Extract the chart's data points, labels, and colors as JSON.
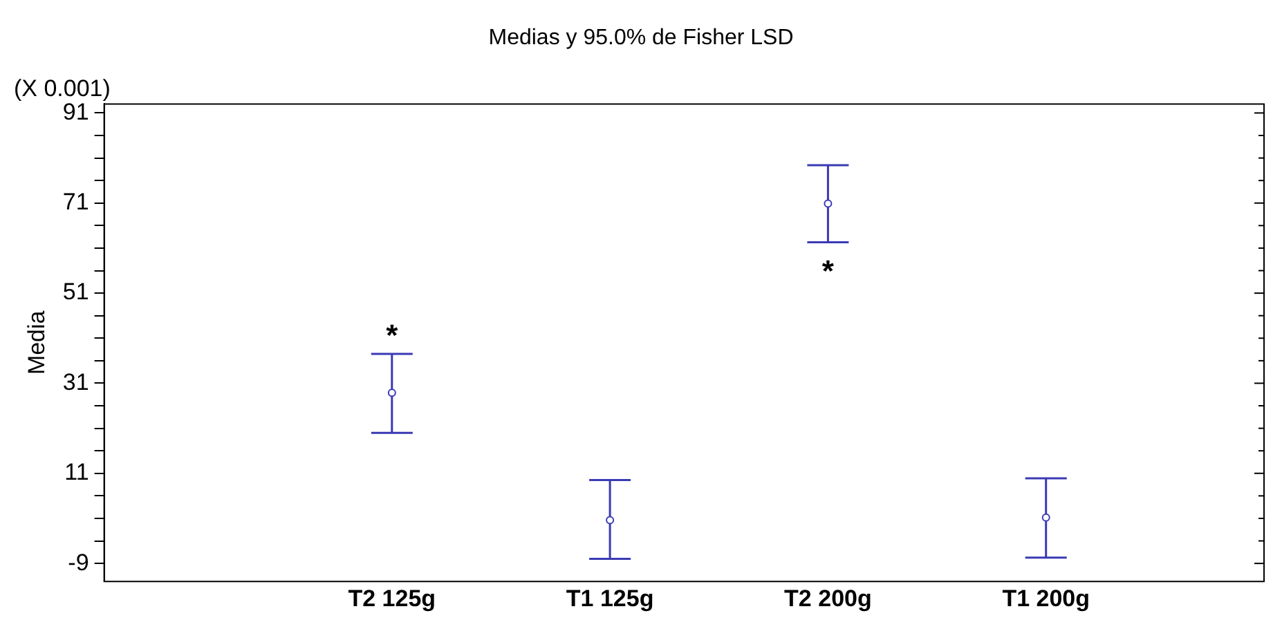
{
  "chart_data": {
    "type": "scatter",
    "title": "Medias y 95.0% de Fisher LSD",
    "ylabel": "Media",
    "categories": [
      "T2 125g",
      "T1 125g",
      "T2 200g",
      "T1 200g"
    ],
    "series": [
      {
        "color": "#3a3ab4",
        "values": [
          28.9,
          0.6,
          70.9,
          1.2
        ],
        "errors": [
          [
            20.0,
            37.5
          ],
          [
            -8.0,
            9.5
          ],
          [
            62.3,
            79.4
          ],
          [
            -7.7,
            9.9
          ]
        ]
      }
    ],
    "ylim": [
      -13,
      93
    ],
    "yticks": [
      {
        "value": -9,
        "label": "-9"
      },
      {
        "value": -4,
        "label": null
      },
      {
        "value": 1,
        "label": null
      },
      {
        "value": 6,
        "label": null
      },
      {
        "value": 11,
        "label": "11"
      },
      {
        "value": 16,
        "label": null
      },
      {
        "value": 21,
        "label": null
      },
      {
        "value": 26,
        "label": null
      },
      {
        "value": 31,
        "label": "31"
      },
      {
        "value": 36,
        "label": null
      },
      {
        "value": 41,
        "label": null
      },
      {
        "value": 46,
        "label": null
      },
      {
        "value": 51,
        "label": "51"
      },
      {
        "value": 56,
        "label": null
      },
      {
        "value": 61,
        "label": null
      },
      {
        "value": 66,
        "label": null
      },
      {
        "value": 71,
        "label": "71"
      },
      {
        "value": 76,
        "label": null
      },
      {
        "value": 81,
        "label": null
      },
      {
        "value": 86,
        "label": null
      },
      {
        "value": 91,
        "label": "91"
      }
    ],
    "marker": "circle",
    "grid": false,
    "legend": false,
    "annotations": [
      "(X 0.001)",
      "*",
      "*"
    ]
  }
}
